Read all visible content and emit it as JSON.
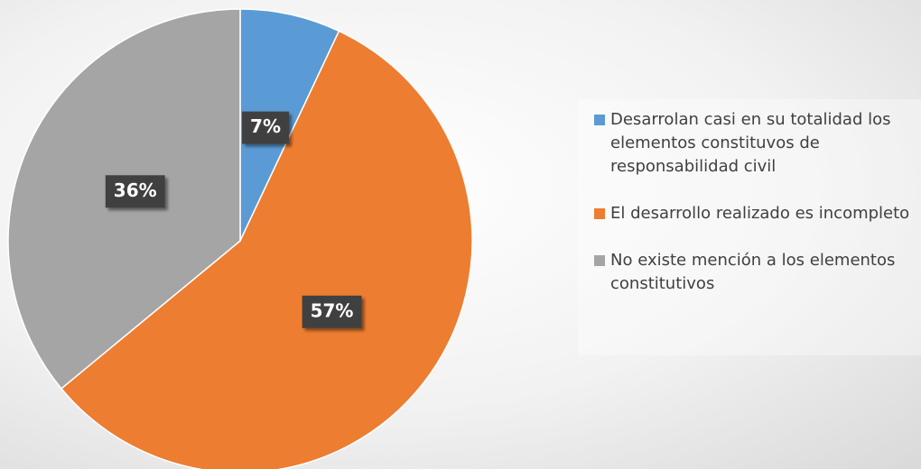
{
  "chart_data": {
    "type": "pie",
    "categories": [
      "Desarrolan casi en su totalidad los elementos constituvos de responsabilidad civil",
      "El desarrollo realizado es incompleto",
      "No existe mención a los elementos constitutivos"
    ],
    "values": [
      7,
      57,
      36
    ],
    "value_labels": [
      "7%",
      "57%",
      "36%"
    ],
    "colors": [
      "#5b9bd5",
      "#ed7d31",
      "#a5a5a5"
    ],
    "legend": "right"
  }
}
